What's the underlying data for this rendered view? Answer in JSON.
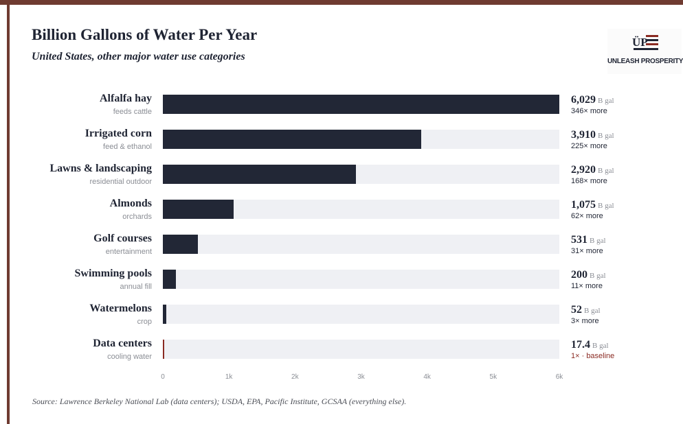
{
  "header": {
    "title": "Billion Gallons of Water Per Year",
    "subtitle": "United States, other major water use categories"
  },
  "logo": {
    "mark_text": "ÜP",
    "name": "UNLEASH PROSPERITY",
    "colors": {
      "navy": "#1f2433",
      "red": "#8a2a22"
    }
  },
  "colors": {
    "bar": "#222736",
    "highlight_bar": "#8a2a22",
    "track": "#eff0f4",
    "frame": "#6f3b31"
  },
  "chart_data": {
    "type": "bar",
    "orientation": "horizontal",
    "title": "Billion Gallons of Water Per Year",
    "subtitle": "United States, other major water use categories",
    "categories": [
      "Alfalfa hay",
      "Irrigated corn",
      "Lawns & landscaping",
      "Almonds",
      "Golf courses",
      "Swimming pools",
      "Watermelons",
      "Data centers"
    ],
    "sublabels": [
      "feeds cattle",
      "feed & ethanol",
      "residential outdoor",
      "orchards",
      "entertainment",
      "annual fill",
      "crop",
      "cooling water"
    ],
    "values": [
      6029,
      3910,
      2920,
      1075,
      531,
      200,
      52,
      17.4
    ],
    "value_labels": [
      "6,029",
      "3,910",
      "2,920",
      "1,075",
      "531",
      "200",
      "52",
      "17.4"
    ],
    "unit": "B gal",
    "multipliers": [
      "346× more",
      "225× more",
      "168× more",
      "62× more",
      "31× more",
      "11× more",
      "3× more",
      "1× · baseline"
    ],
    "highlight_index": 7,
    "xlim": [
      0,
      6000
    ],
    "xticks": [
      0,
      1000,
      2000,
      3000,
      4000,
      5000,
      6000
    ],
    "xtick_labels": [
      "0",
      "1k",
      "2k",
      "3k",
      "4k",
      "5k",
      "6k"
    ],
    "grid": false,
    "legend": "none"
  },
  "footer": {
    "source": "Source: Lawrence Berkeley National Lab (data centers); USDA, EPA, Pacific Institute, GCSAA (everything else)."
  }
}
